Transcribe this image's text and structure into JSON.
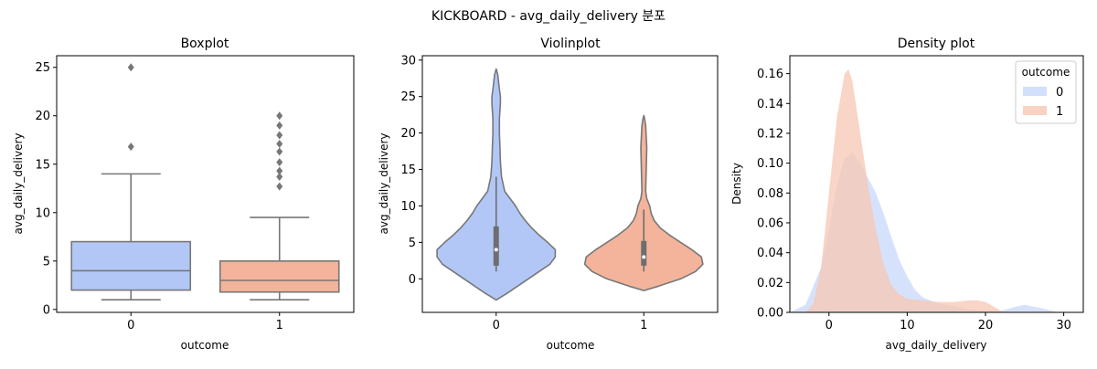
{
  "suptitle": "KICKBOARD - avg_daily_delivery 분포",
  "colors": {
    "outcome_0": "#b3c7f7",
    "outcome_1": "#f3b49b",
    "median_line": "#6e6e6e",
    "density_0": "#c8d8fb",
    "density_1": "#f6c7b3"
  },
  "chart_data": [
    {
      "type": "box",
      "title": "Boxplot",
      "xlabel": "outcome",
      "ylabel": "avg_daily_delivery",
      "categories": [
        "0",
        "1"
      ],
      "ylim": [
        -0.3,
        26.2
      ],
      "yticks": [
        0,
        5,
        10,
        15,
        20,
        25
      ],
      "boxes": [
        {
          "category": "0",
          "whisker_low": 1,
          "q1": 2,
          "median": 4,
          "q3": 7,
          "whisker_high": 14,
          "outliers": [
            16.8,
            25
          ]
        },
        {
          "category": "1",
          "whisker_low": 1,
          "q1": 1.8,
          "median": 3,
          "q3": 5,
          "whisker_high": 9.5,
          "outliers": [
            12.7,
            13.7,
            14.3,
            15.2,
            16.3,
            17.1,
            18,
            19,
            20
          ]
        }
      ]
    },
    {
      "type": "violin",
      "title": "Violinplot",
      "xlabel": "outcome",
      "ylabel": "avg_daily_delivery",
      "categories": [
        "0",
        "1"
      ],
      "ylim": [
        -4.6,
        30.6
      ],
      "yticks": [
        0,
        5,
        10,
        15,
        20,
        25,
        30
      ],
      "violins": [
        {
          "category": "0",
          "profile": [
            [
              -2.9,
              0.0
            ],
            [
              -2,
              0.1
            ],
            [
              -1,
              0.2
            ],
            [
              0,
              0.3
            ],
            [
              1,
              0.4
            ],
            [
              2,
              0.5
            ],
            [
              3,
              0.55
            ],
            [
              4,
              0.55
            ],
            [
              5,
              0.48
            ],
            [
              6,
              0.4
            ],
            [
              7,
              0.33
            ],
            [
              8,
              0.27
            ],
            [
              9,
              0.22
            ],
            [
              10,
              0.18
            ],
            [
              12,
              0.08
            ],
            [
              14,
              0.05
            ],
            [
              16,
              0.04
            ],
            [
              18,
              0.035
            ],
            [
              20,
              0.03
            ],
            [
              22,
              0.03
            ],
            [
              24,
              0.04
            ],
            [
              25,
              0.04
            ],
            [
              26,
              0.03
            ],
            [
              28,
              0.015
            ],
            [
              28.8,
              0.0
            ]
          ],
          "q1": 1.8,
          "median": 4,
          "q3": 7.2,
          "whisker_low": 1,
          "whisker_high": 14
        },
        {
          "category": "1",
          "profile": [
            [
              -1.6,
              0.0
            ],
            [
              -1,
              0.2
            ],
            [
              0,
              0.5
            ],
            [
              1,
              0.7
            ],
            [
              2,
              0.8
            ],
            [
              3,
              0.78
            ],
            [
              4,
              0.65
            ],
            [
              5,
              0.5
            ],
            [
              6,
              0.35
            ],
            [
              7,
              0.22
            ],
            [
              8,
              0.14
            ],
            [
              9,
              0.1
            ],
            [
              10,
              0.08
            ],
            [
              11,
              0.04
            ],
            [
              12,
              0.025
            ],
            [
              14,
              0.03
            ],
            [
              16,
              0.035
            ],
            [
              18,
              0.04
            ],
            [
              20,
              0.03
            ],
            [
              21,
              0.025
            ],
            [
              22,
              0.01
            ],
            [
              22.4,
              0.0
            ]
          ],
          "q1": 1.8,
          "median": 3,
          "q3": 5.2,
          "whisker_low": 1,
          "whisker_high": 9.5
        }
      ]
    },
    {
      "type": "area",
      "title": "Density plot",
      "xlabel": "avg_daily_delivery",
      "ylabel": "Density",
      "xlim": [
        -5,
        32.5
      ],
      "ylim": [
        0,
        0.172
      ],
      "xticks": [
        0,
        10,
        20,
        30
      ],
      "yticks": [
        0.0,
        0.02,
        0.04,
        0.06,
        0.08,
        0.1,
        0.12,
        0.14,
        0.16
      ],
      "legend": {
        "title": "outcome",
        "position": "top-right",
        "entries": [
          "0",
          "1"
        ]
      },
      "series": [
        {
          "name": "0",
          "points": [
            [
              -5,
              0
            ],
            [
              -3,
              0.005
            ],
            [
              -1,
              0.03
            ],
            [
              0,
              0.055
            ],
            [
              1,
              0.085
            ],
            [
              2,
              0.103
            ],
            [
              3,
              0.107
            ],
            [
              4,
              0.1
            ],
            [
              5,
              0.09
            ],
            [
              6,
              0.08
            ],
            [
              7,
              0.066
            ],
            [
              8,
              0.05
            ],
            [
              9,
              0.035
            ],
            [
              10,
              0.024
            ],
            [
              11,
              0.015
            ],
            [
              12,
              0.01
            ],
            [
              14,
              0.006
            ],
            [
              16,
              0.004
            ],
            [
              18,
              0.002
            ],
            [
              20,
              0.001
            ],
            [
              22,
              0.001
            ],
            [
              24,
              0.004
            ],
            [
              25,
              0.005
            ],
            [
              27,
              0.003
            ],
            [
              29,
              0.0005
            ],
            [
              30,
              0
            ]
          ]
        },
        {
          "name": "1",
          "points": [
            [
              -3,
              0
            ],
            [
              -2,
              0.006
            ],
            [
              -1,
              0.03
            ],
            [
              0,
              0.08
            ],
            [
              1,
              0.13
            ],
            [
              2,
              0.16
            ],
            [
              2.5,
              0.163
            ],
            [
              3,
              0.155
            ],
            [
              4,
              0.12
            ],
            [
              5,
              0.085
            ],
            [
              6,
              0.055
            ],
            [
              7,
              0.032
            ],
            [
              8,
              0.018
            ],
            [
              9,
              0.012
            ],
            [
              10,
              0.009
            ],
            [
              12,
              0.008
            ],
            [
              14,
              0.007
            ],
            [
              16,
              0.007
            ],
            [
              18,
              0.008
            ],
            [
              19,
              0.008
            ],
            [
              20,
              0.007
            ],
            [
              21,
              0.004
            ],
            [
              22,
              0.001
            ],
            [
              23,
              0
            ]
          ]
        }
      ]
    }
  ]
}
